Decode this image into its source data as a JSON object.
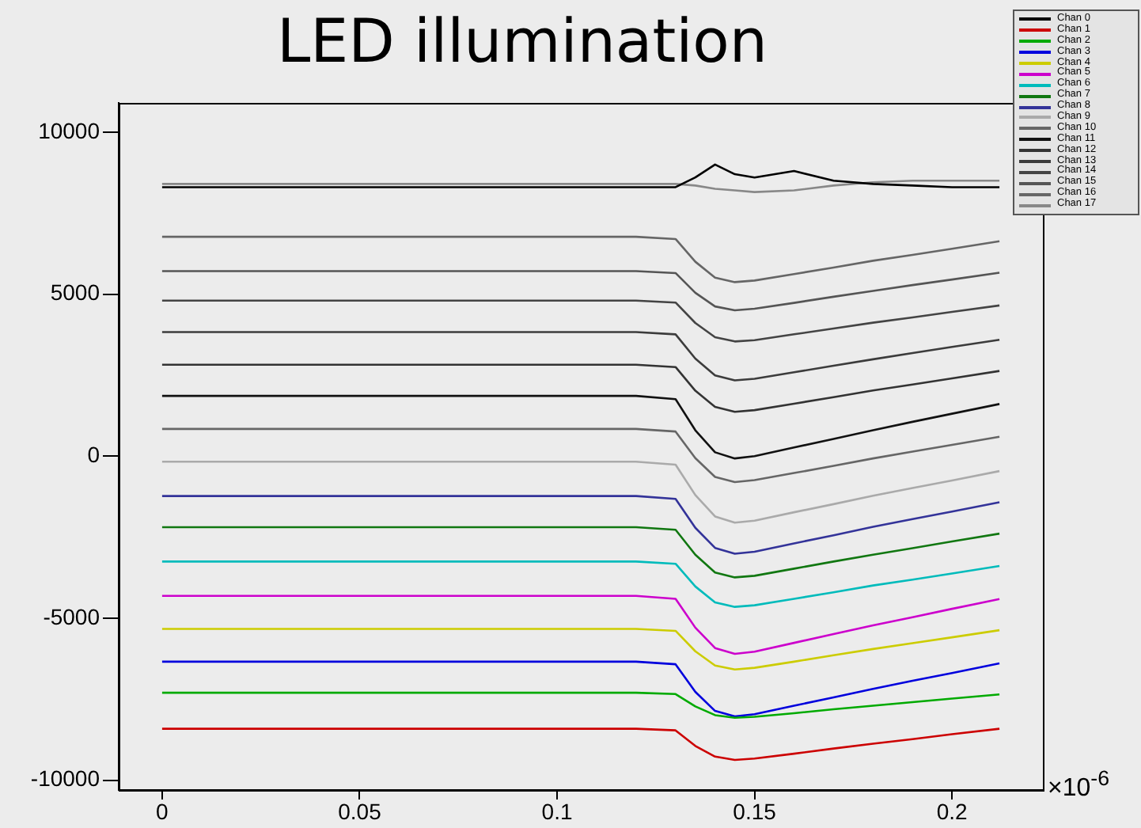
{
  "chart_data": {
    "type": "line",
    "title": "LED illumination",
    "xlabel": "×10$^{-6}$",
    "x": [
      0,
      0.03,
      0.06,
      0.09,
      0.12,
      0.13,
      0.135,
      0.14,
      0.145,
      0.15,
      0.16,
      0.17,
      0.18,
      0.19,
      0.2,
      0.212
    ],
    "xlim": [
      -0.011,
      0.223
    ],
    "xticks": [
      {
        "value": 0,
        "label": "0"
      },
      0.05,
      0.1,
      0.15,
      0.2
    ],
    "ylim": [
      -10300,
      10900
    ],
    "yticks": [
      -10000,
      -5000,
      0,
      5000,
      10000
    ],
    "grid": false,
    "legend": "top right",
    "marker": "none",
    "line_style": "solid",
    "series": [
      {
        "name": "Chan 0",
        "color": "#000000",
        "values": [
          8300,
          8300,
          8300,
          8300,
          8300,
          8300,
          8600,
          9000,
          8700,
          8600,
          8800,
          8500,
          8400,
          8350,
          8300,
          8300
        ]
      },
      {
        "name": "Chan 1",
        "color": "#cc0000",
        "values": [
          -8410,
          -8410,
          -8410,
          -8410,
          -8410,
          -8460,
          -8940,
          -9270,
          -9370,
          -9330,
          -9180,
          -9020,
          -8870,
          -8730,
          -8580,
          -8410
        ]
      },
      {
        "name": "Chan 2",
        "color": "#00aa00",
        "values": [
          -7300,
          -7300,
          -7300,
          -7300,
          -7300,
          -7340,
          -7720,
          -7990,
          -8070,
          -8040,
          -7930,
          -7810,
          -7700,
          -7590,
          -7480,
          -7350
        ]
      },
      {
        "name": "Chan 3",
        "color": "#0000dd",
        "values": [
          -6340,
          -6340,
          -6340,
          -6340,
          -6340,
          -6420,
          -7270,
          -7860,
          -8030,
          -7960,
          -7700,
          -7440,
          -7180,
          -6930,
          -6690,
          -6390
        ]
      },
      {
        "name": "Chan 4",
        "color": "#cccc00",
        "values": [
          -5330,
          -5330,
          -5330,
          -5330,
          -5330,
          -5390,
          -6020,
          -6460,
          -6580,
          -6530,
          -6340,
          -6140,
          -5950,
          -5770,
          -5590,
          -5370
        ]
      },
      {
        "name": "Chan 5",
        "color": "#cc00cc",
        "values": [
          -4310,
          -4310,
          -4310,
          -4310,
          -4310,
          -4400,
          -5290,
          -5920,
          -6100,
          -6030,
          -5760,
          -5490,
          -5220,
          -4970,
          -4710,
          -4410
        ]
      },
      {
        "name": "Chan 6",
        "color": "#00bbbb",
        "values": [
          -3250,
          -3250,
          -3250,
          -3250,
          -3250,
          -3320,
          -4020,
          -4510,
          -4650,
          -4600,
          -4400,
          -4200,
          -3990,
          -3810,
          -3620,
          -3390
        ]
      },
      {
        "name": "Chan 7",
        "color": "#117711",
        "values": [
          -2190,
          -2190,
          -2190,
          -2190,
          -2190,
          -2270,
          -3040,
          -3590,
          -3740,
          -3690,
          -3470,
          -3250,
          -3040,
          -2840,
          -2630,
          -2390
        ]
      },
      {
        "name": "Chan 8",
        "color": "#333399",
        "values": [
          -1230,
          -1230,
          -1230,
          -1230,
          -1230,
          -1320,
          -2210,
          -2830,
          -3010,
          -2950,
          -2690,
          -2440,
          -2180,
          -1940,
          -1710,
          -1420
        ]
      },
      {
        "name": "Chan 9",
        "color": "#aaaaaa",
        "values": [
          -170,
          -170,
          -170,
          -170,
          -170,
          -260,
          -1200,
          -1860,
          -2050,
          -1990,
          -1730,
          -1480,
          -1220,
          -980,
          -750,
          -460
        ]
      },
      {
        "name": "Chan 10",
        "color": "#666666",
        "values": [
          840,
          840,
          840,
          840,
          840,
          760,
          -60,
          -640,
          -800,
          -740,
          -520,
          -300,
          -70,
          140,
          350,
          600
        ]
      },
      {
        "name": "Chan 11",
        "color": "#111111",
        "values": [
          1860,
          1860,
          1860,
          1860,
          1860,
          1760,
          800,
          120,
          -70,
          0,
          270,
          530,
          800,
          1060,
          1310,
          1610
        ]
      },
      {
        "name": "Chan 12",
        "color": "#333333",
        "values": [
          2820,
          2820,
          2820,
          2820,
          2820,
          2750,
          2020,
          1520,
          1370,
          1420,
          1620,
          1820,
          2030,
          2210,
          2400,
          2630
        ]
      },
      {
        "name": "Chan 13",
        "color": "#3c3c3c",
        "values": [
          3830,
          3830,
          3830,
          3830,
          3830,
          3760,
          3010,
          2490,
          2340,
          2390,
          2590,
          2790,
          2990,
          3180,
          3370,
          3590
        ]
      },
      {
        "name": "Chan 14",
        "color": "#444444",
        "values": [
          4800,
          4800,
          4800,
          4800,
          4800,
          4740,
          4110,
          3670,
          3540,
          3580,
          3760,
          3940,
          4120,
          4280,
          4450,
          4650
        ]
      },
      {
        "name": "Chan 15",
        "color": "#555555",
        "values": [
          5710,
          5710,
          5710,
          5710,
          5710,
          5650,
          5040,
          4620,
          4500,
          4550,
          4730,
          4920,
          5100,
          5280,
          5450,
          5660
        ]
      },
      {
        "name": "Chan 16",
        "color": "#666666",
        "values": [
          6770,
          6770,
          6770,
          6770,
          6770,
          6700,
          6000,
          5510,
          5370,
          5420,
          5620,
          5820,
          6030,
          6210,
          6400,
          6630
        ]
      },
      {
        "name": "Chan 17",
        "color": "#888888",
        "values": [
          8400,
          8400,
          8400,
          8400,
          8400,
          8400,
          8350,
          8250,
          8200,
          8150,
          8200,
          8350,
          8450,
          8500,
          8500,
          8500
        ]
      }
    ]
  }
}
